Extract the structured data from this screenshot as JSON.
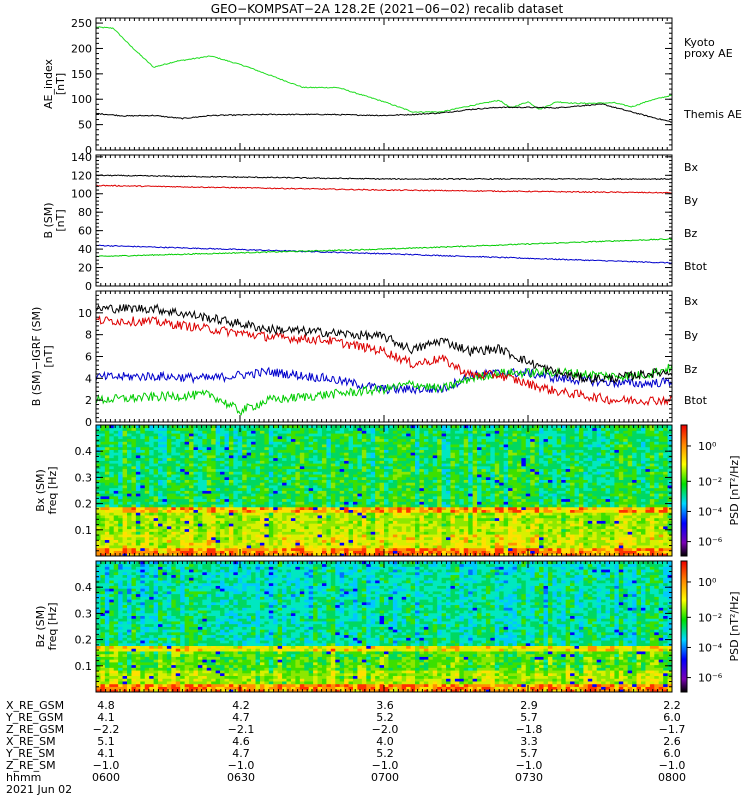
{
  "title": "GEO−KOMPSAT−2A 128.2E (2021−06−02) recalib dataset",
  "colors": {
    "black": "#000000",
    "red": "#dd0000",
    "green": "#00cc00",
    "blue": "#0000cc",
    "ae_green": "#22dd22"
  },
  "chart_data": [
    {
      "type": "line",
      "name": "ae-panel",
      "ylabel": "AE_index\n[nT]",
      "ylim": [
        0,
        260
      ],
      "yticks": [
        0,
        50,
        100,
        150,
        200,
        250
      ],
      "series": [
        {
          "name": "Kyoto\nproxy AE",
          "color": "#22dd22",
          "t": [
            0,
            0.03,
            0.06,
            0.1,
            0.14,
            0.2,
            0.26,
            0.3,
            0.36,
            0.42,
            0.5,
            0.55,
            0.6,
            0.64,
            0.7,
            0.72,
            0.75,
            0.77,
            0.8,
            0.83,
            0.86,
            0.9,
            0.93,
            0.96,
            1.0
          ],
          "y": [
            242,
            240,
            205,
            163,
            175,
            185,
            165,
            148,
            123,
            123,
            95,
            75,
            75,
            85,
            98,
            83,
            95,
            80,
            95,
            92,
            92,
            93,
            85,
            97,
            108
          ]
        },
        {
          "name": "Themis AE",
          "color": "#000000",
          "t": [
            0,
            0.05,
            0.1,
            0.15,
            0.2,
            0.3,
            0.4,
            0.5,
            0.55,
            0.6,
            0.65,
            0.7,
            0.75,
            0.8,
            0.85,
            0.88,
            0.92,
            0.96,
            1.0
          ],
          "y": [
            72,
            67,
            68,
            62,
            68,
            70,
            70,
            68,
            70,
            73,
            80,
            84,
            84,
            83,
            88,
            90,
            78,
            66,
            55
          ]
        }
      ]
    },
    {
      "type": "line",
      "name": "b-sm-panel",
      "ylabel": "B (SM)\n[nT]",
      "ylim": [
        0,
        142
      ],
      "yticks": [
        0,
        20,
        40,
        60,
        80,
        100,
        120,
        140
      ],
      "series": [
        {
          "name": "Bx",
          "color": "#0000cc",
          "t": [
            0,
            0.5,
            1.0
          ],
          "y": [
            44,
            35,
            25
          ]
        },
        {
          "name": "By",
          "color": "#00cc00",
          "t": [
            0,
            0.5,
            1.0
          ],
          "y": [
            32,
            40,
            51
          ]
        },
        {
          "name": "Bz",
          "color": "#dd0000",
          "t": [
            0,
            0.5,
            1.0
          ],
          "y": [
            109,
            104,
            101
          ]
        },
        {
          "name": "Btot",
          "color": "#000000",
          "t": [
            0,
            0.5,
            1.0
          ],
          "y": [
            120,
            116,
            116
          ]
        }
      ]
    },
    {
      "type": "line",
      "name": "b-sm-igrf-panel",
      "ylabel": "B (SM)−IGRF (SM)\n[nT]",
      "ylim": [
        0,
        12
      ],
      "yticks": [
        0,
        2,
        4,
        6,
        8,
        10
      ],
      "series": [
        {
          "name": "Bx",
          "color": "#0000cc",
          "t": [
            0,
            0.1,
            0.2,
            0.3,
            0.4,
            0.5,
            0.6,
            0.65,
            0.7,
            0.75,
            0.8,
            0.85,
            0.9,
            0.95,
            1.0
          ],
          "y": [
            4.1,
            4.2,
            4.0,
            4.6,
            4.0,
            3.0,
            3.0,
            4.2,
            4.5,
            4.5,
            4.0,
            3.8,
            3.6,
            3.5,
            3.7
          ]
        },
        {
          "name": "By",
          "color": "#00cc00",
          "t": [
            0,
            0.1,
            0.2,
            0.25,
            0.3,
            0.4,
            0.5,
            0.55,
            0.6,
            0.65,
            0.7,
            0.75,
            0.8,
            0.85,
            0.9,
            0.95,
            1.0
          ],
          "y": [
            2.0,
            2.3,
            2.5,
            1.0,
            2.0,
            2.5,
            3.0,
            3.5,
            3.0,
            4.0,
            4.5,
            4.5,
            4.6,
            4.4,
            4.2,
            4.3,
            5.0
          ]
        },
        {
          "name": "Bz",
          "color": "#dd0000",
          "t": [
            0,
            0.1,
            0.2,
            0.3,
            0.4,
            0.5,
            0.55,
            0.6,
            0.65,
            0.7,
            0.75,
            0.8,
            0.85,
            0.9,
            0.95,
            1.0
          ],
          "y": [
            9.3,
            9.2,
            8.5,
            7.8,
            7.5,
            6.5,
            5.3,
            5.8,
            4.3,
            4.3,
            3.5,
            2.8,
            2.4,
            2.0,
            2.0,
            2.0
          ]
        },
        {
          "name": "Btot",
          "color": "#000000",
          "t": [
            0,
            0.1,
            0.2,
            0.3,
            0.4,
            0.5,
            0.55,
            0.6,
            0.65,
            0.7,
            0.75,
            0.8,
            0.85,
            0.9,
            0.95,
            1.0
          ],
          "y": [
            10.4,
            10.4,
            9.5,
            8.5,
            8.2,
            7.8,
            6.6,
            7.5,
            6.5,
            6.7,
            5.5,
            4.5,
            4.0,
            4.0,
            4.4,
            4.6
          ]
        }
      ]
    },
    {
      "type": "heatmap",
      "name": "bx-spectrogram",
      "ylabel": "Bx (SM)\nfreq [Hz]",
      "ylim": [
        0,
        0.5
      ],
      "yticks": [
        0.1,
        0.2,
        0.3,
        0.4
      ],
      "colorbar_label": "PSD [nT²/Hz]",
      "colorbar_ticks": [
        "10⁰",
        "10⁻²",
        "10⁻⁴",
        "10⁻⁶"
      ]
    },
    {
      "type": "heatmap",
      "name": "bz-spectrogram",
      "ylabel": "Bz (SM)\nfreq [Hz]",
      "ylim": [
        0,
        0.5
      ],
      "yticks": [
        0.1,
        0.2,
        0.3,
        0.4
      ],
      "colorbar_label": "PSD [nT²/Hz]",
      "colorbar_ticks": [
        "10⁰",
        "10⁻²",
        "10⁻⁴",
        "10⁻⁶"
      ]
    }
  ],
  "ephemeris": {
    "row_labels": [
      "X_RE_GSM",
      "Y_RE_GSM",
      "Z_RE_GSM",
      "X_RE_SM",
      "Y_RE_SM",
      "Z_RE_SM",
      "hhmm"
    ],
    "columns": [
      {
        "values": [
          "4.8",
          "4.1",
          "−2.2",
          "5.1",
          "4.1",
          "−1.0",
          "0600"
        ]
      },
      {
        "values": [
          "4.2",
          "4.7",
          "−2.1",
          "4.6",
          "4.7",
          "−1.0",
          "0630"
        ]
      },
      {
        "values": [
          "3.6",
          "5.2",
          "−2.0",
          "4.0",
          "5.2",
          "−1.0",
          "0700"
        ]
      },
      {
        "values": [
          "2.9",
          "5.7",
          "−1.8",
          "3.3",
          "5.7",
          "−1.0",
          "0730"
        ]
      },
      {
        "values": [
          "2.2",
          "6.0",
          "−1.7",
          "2.6",
          "6.0",
          "−1.0",
          "0800"
        ]
      }
    ],
    "date": "2021 Jun 02"
  }
}
